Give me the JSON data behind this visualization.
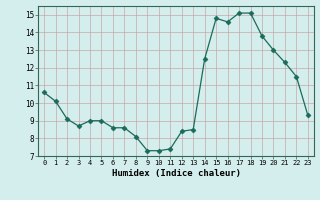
{
  "x": [
    0,
    1,
    2,
    3,
    4,
    5,
    6,
    7,
    8,
    9,
    10,
    11,
    12,
    13,
    14,
    15,
    16,
    17,
    18,
    19,
    20,
    21,
    22,
    23
  ],
  "y": [
    10.6,
    10.1,
    9.1,
    8.7,
    9.0,
    9.0,
    8.6,
    8.6,
    8.1,
    7.3,
    7.3,
    7.4,
    8.4,
    8.5,
    12.5,
    14.8,
    14.6,
    15.1,
    15.1,
    13.8,
    13.0,
    12.3,
    11.5,
    9.3
  ],
  "xlabel": "Humidex (Indice chaleur)",
  "ylim": [
    7,
    15.5
  ],
  "xlim": [
    -0.5,
    23.5
  ],
  "bg_color": "#d4eeed",
  "grid_color_major": "#c8a8a8",
  "line_color": "#1a6b5a",
  "marker_size": 2.5,
  "xticks": [
    0,
    1,
    2,
    3,
    4,
    5,
    6,
    7,
    8,
    9,
    10,
    11,
    12,
    13,
    14,
    15,
    16,
    17,
    18,
    19,
    20,
    21,
    22,
    23
  ],
  "yticks": [
    7,
    8,
    9,
    10,
    11,
    12,
    13,
    14,
    15
  ]
}
